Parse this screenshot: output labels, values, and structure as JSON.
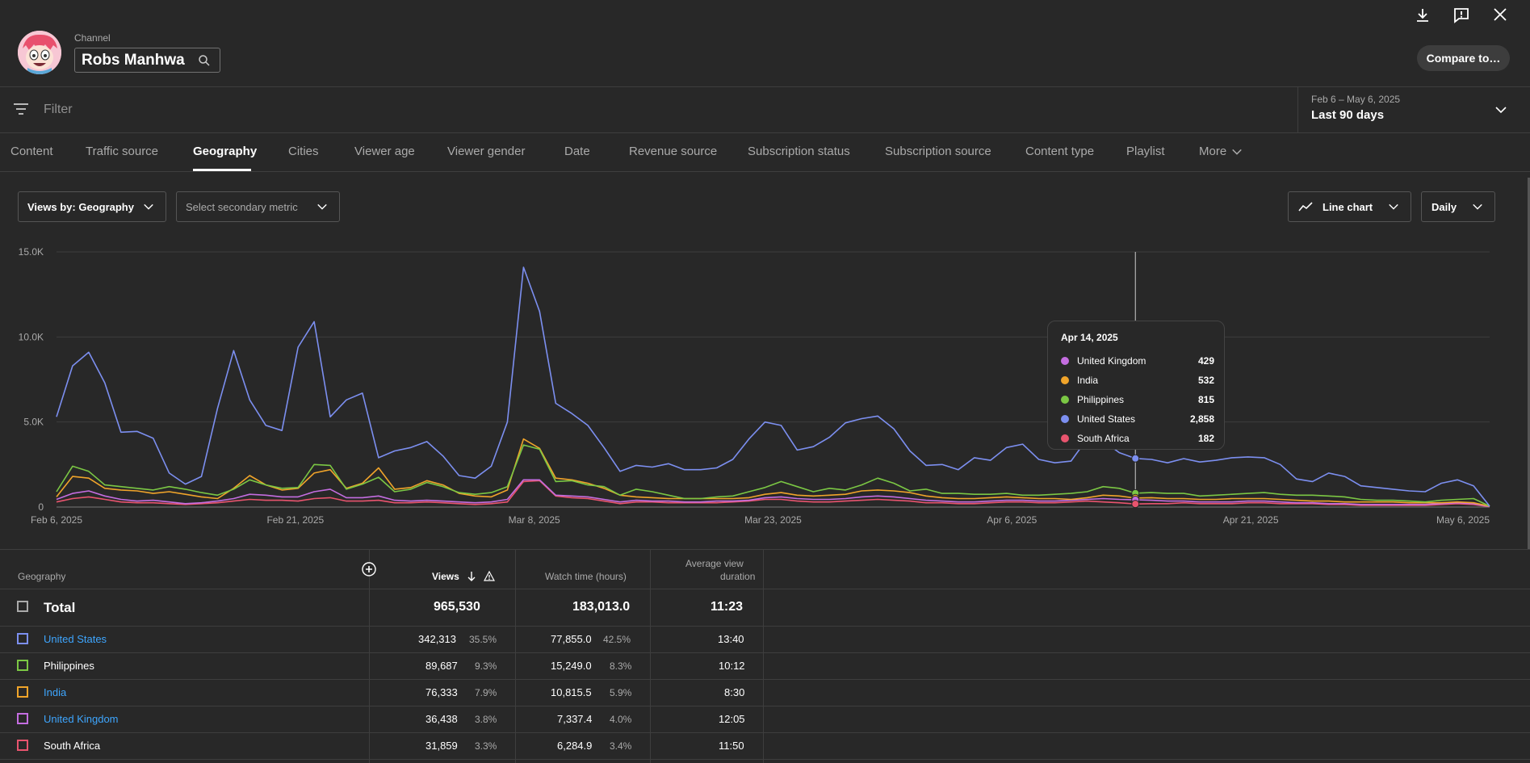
{
  "header": {
    "channel_label": "Channel",
    "channel_name": "Robs Manhwa",
    "compare_label": "Compare to…",
    "icons": [
      "download-icon",
      "feedback-icon",
      "close-icon"
    ]
  },
  "filter": {
    "placeholder": "Filter",
    "date_range": "Feb 6 – May 6, 2025",
    "date_preset": "Last 90 days"
  },
  "tabs": [
    {
      "label": "Content"
    },
    {
      "label": "Traffic source"
    },
    {
      "label": "Geography"
    },
    {
      "label": "Cities"
    },
    {
      "label": "Viewer age"
    },
    {
      "label": "Viewer gender"
    },
    {
      "label": "Date"
    },
    {
      "label": "Revenue source"
    },
    {
      "label": "Subscription status"
    },
    {
      "label": "Subscription source"
    },
    {
      "label": "Content type"
    },
    {
      "label": "Playlist"
    },
    {
      "label": "More"
    }
  ],
  "active_tab": "Geography",
  "controls": {
    "metric": "Views by: Geography",
    "secondary": "Select secondary metric",
    "chart_type": "Line chart",
    "interval": "Daily"
  },
  "colors": {
    "united_states": "#7c8ff0",
    "philippines": "#7bc744",
    "india": "#f0a42a",
    "united_kingdom": "#c46de0",
    "south_africa": "#e8546e",
    "accent_link": "#3ea6ff"
  },
  "chart_data": {
    "type": "line",
    "title": "",
    "y_ticks": [
      "15.0K",
      "10.0K",
      "5.0K",
      "0"
    ],
    "ylim": [
      0,
      15000
    ],
    "x_ticks": [
      "Feb 6, 2025",
      "Feb 21, 2025",
      "Mar 8, 2025",
      "Mar 23, 2025",
      "Apr 6, 2025",
      "Apr 21, 2025",
      "May 6, 2025"
    ],
    "x_start": "Feb 6, 2025",
    "x_end": "May 6, 2025",
    "series": [
      {
        "name": "United States",
        "color": "#7c8ff0",
        "values": [
          5300,
          8300,
          9100,
          7300,
          4400,
          4450,
          4050,
          2000,
          1350,
          1800,
          5800,
          9200,
          6300,
          4800,
          4500,
          9400,
          10900,
          5300,
          6300,
          6700,
          2900,
          3300,
          3500,
          3850,
          3000,
          1850,
          1700,
          2400,
          5000,
          14100,
          11500,
          6100,
          5500,
          4800,
          3500,
          2100,
          2450,
          2350,
          2550,
          2200,
          2200,
          2300,
          2800,
          4000,
          5000,
          4800,
          3350,
          3550,
          4100,
          4950,
          5200,
          5350,
          4600,
          3300,
          2450,
          2500,
          2200,
          2900,
          2750,
          3500,
          3700,
          2800,
          2600,
          2700,
          4000,
          3900,
          3200,
          2858,
          2800,
          2600,
          2850,
          2650,
          2750,
          2900,
          2950,
          2900,
          2500,
          1650,
          1500,
          2000,
          1800,
          1250,
          1150,
          1050,
          950,
          900,
          1400,
          1600,
          1250,
          50
        ]
      },
      {
        "name": "Philippines",
        "color": "#7bc744",
        "values": [
          900,
          2400,
          2100,
          1300,
          1200,
          1100,
          1000,
          1200,
          1050,
          850,
          700,
          1050,
          1600,
          1300,
          1100,
          1150,
          2500,
          2450,
          1050,
          1350,
          1750,
          900,
          1050,
          1450,
          1200,
          850,
          750,
          850,
          1200,
          3650,
          3400,
          1500,
          1550,
          1300,
          1200,
          700,
          1050,
          900,
          700,
          500,
          500,
          600,
          650,
          900,
          1150,
          1500,
          1200,
          900,
          1100,
          1000,
          1300,
          1700,
          1400,
          950,
          1050,
          800,
          800,
          750,
          750,
          800,
          700,
          700,
          750,
          800,
          900,
          1200,
          1100,
          815,
          850,
          800,
          800,
          650,
          700,
          750,
          800,
          850,
          750,
          700,
          700,
          650,
          600,
          450,
          400,
          400,
          350,
          300,
          400,
          450,
          500,
          50
        ]
      },
      {
        "name": "India",
        "color": "#f0a42a",
        "values": [
          600,
          1800,
          1700,
          1100,
          1000,
          950,
          800,
          900,
          750,
          600,
          500,
          1100,
          1850,
          1300,
          1000,
          1100,
          2000,
          2200,
          1100,
          1400,
          2300,
          1050,
          1150,
          1550,
          1300,
          800,
          650,
          600,
          1000,
          4000,
          3450,
          1700,
          1600,
          1400,
          1100,
          700,
          600,
          550,
          500,
          500,
          500,
          500,
          500,
          550,
          750,
          850,
          700,
          650,
          700,
          750,
          950,
          1000,
          950,
          850,
          650,
          550,
          500,
          500,
          550,
          600,
          550,
          500,
          500,
          450,
          550,
          700,
          650,
          532,
          550,
          500,
          500,
          450,
          450,
          500,
          500,
          500,
          450,
          400,
          350,
          350,
          300,
          300,
          300,
          300,
          250,
          250,
          250,
          300,
          250,
          50
        ]
      },
      {
        "name": "United Kingdom",
        "color": "#c46de0",
        "values": [
          450,
          800,
          950,
          650,
          450,
          350,
          400,
          300,
          200,
          250,
          350,
          500,
          750,
          700,
          600,
          600,
          900,
          1050,
          550,
          550,
          650,
          400,
          350,
          400,
          350,
          300,
          250,
          300,
          450,
          1600,
          1600,
          700,
          650,
          600,
          450,
          300,
          400,
          350,
          350,
          300,
          300,
          350,
          350,
          400,
          550,
          600,
          500,
          450,
          450,
          500,
          600,
          650,
          600,
          500,
          400,
          350,
          300,
          300,
          350,
          400,
          400,
          350,
          350,
          400,
          450,
          500,
          450,
          429,
          400,
          350,
          350,
          300,
          300,
          300,
          350,
          350,
          300,
          250,
          250,
          200,
          200,
          150,
          150,
          150,
          150,
          150,
          200,
          250,
          200,
          30
        ]
      },
      {
        "name": "South Africa",
        "color": "#e8546e",
        "values": [
          300,
          500,
          600,
          450,
          300,
          250,
          250,
          200,
          150,
          200,
          250,
          350,
          450,
          400,
          400,
          350,
          500,
          550,
          350,
          350,
          400,
          250,
          250,
          300,
          250,
          200,
          150,
          200,
          300,
          1500,
          1550,
          650,
          550,
          500,
          350,
          200,
          300,
          300,
          250,
          250,
          250,
          250,
          300,
          350,
          450,
          450,
          350,
          300,
          300,
          350,
          400,
          450,
          400,
          350,
          250,
          250,
          200,
          200,
          250,
          300,
          300,
          250,
          250,
          300,
          350,
          300,
          250,
          182,
          200,
          200,
          250,
          200,
          200,
          200,
          250,
          250,
          200,
          200,
          200,
          150,
          150,
          100,
          100,
          100,
          100,
          100,
          150,
          200,
          150,
          20
        ]
      }
    ],
    "hover": {
      "date": "Apr 14, 2025",
      "rows": [
        {
          "name": "United Kingdom",
          "value": "429",
          "color": "#c46de0"
        },
        {
          "name": "India",
          "value": "532",
          "color": "#f0a42a"
        },
        {
          "name": "Philippines",
          "value": "815",
          "color": "#7bc744"
        },
        {
          "name": "United States",
          "value": "2,858",
          "color": "#7c8ff0"
        },
        {
          "name": "South Africa",
          "value": "182",
          "color": "#e8546e"
        }
      ]
    }
  },
  "table": {
    "headers": {
      "geography": "Geography",
      "views": "Views",
      "watch_time": "Watch time (hours)",
      "avd_line1": "Average view",
      "avd_line2": "duration"
    },
    "total": {
      "label": "Total",
      "views": "965,530",
      "watch": "183,013.0",
      "avd": "11:23"
    },
    "rows": [
      {
        "name": "United States",
        "views": "342,313",
        "views_pct": "35.5%",
        "watch": "77,855.0",
        "watch_pct": "42.5%",
        "avd": "13:40",
        "link": true
      },
      {
        "name": "Philippines",
        "views": "89,687",
        "views_pct": "9.3%",
        "watch": "15,249.0",
        "watch_pct": "8.3%",
        "avd": "10:12",
        "link": false
      },
      {
        "name": "India",
        "views": "76,333",
        "views_pct": "7.9%",
        "watch": "10,815.5",
        "watch_pct": "5.9%",
        "avd": "8:30",
        "link": true
      },
      {
        "name": "United Kingdom",
        "views": "36,438",
        "views_pct": "3.8%",
        "watch": "7,337.4",
        "watch_pct": "4.0%",
        "avd": "12:05",
        "link": true
      },
      {
        "name": "South Africa",
        "views": "31,859",
        "views_pct": "3.3%",
        "watch": "6,284.9",
        "watch_pct": "3.4%",
        "avd": "11:50",
        "link": false
      }
    ]
  }
}
